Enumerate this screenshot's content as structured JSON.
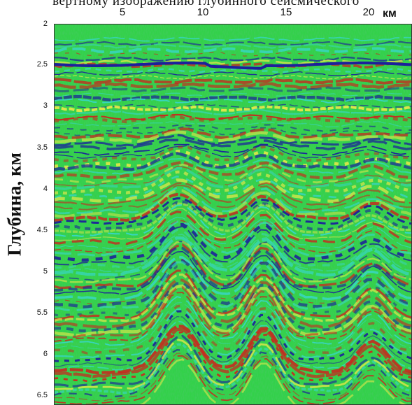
{
  "caption": "вертному изображению глубинного сейсмического",
  "x_axis": {
    "unit": "км",
    "ticks": [
      "5",
      "10",
      "15",
      "20"
    ]
  },
  "y_axis": {
    "label": "Глубина, км",
    "ticks": [
      "2",
      "2.5",
      "3",
      "3.5",
      "4",
      "4.5",
      "5",
      "5.5",
      "6",
      "6.5"
    ]
  },
  "colors": {
    "background": "#33d14a",
    "red": "#c8281e",
    "blue": "#1c1f9c",
    "cyan": "#38d6cf",
    "yellow": "#e8e84a"
  }
}
